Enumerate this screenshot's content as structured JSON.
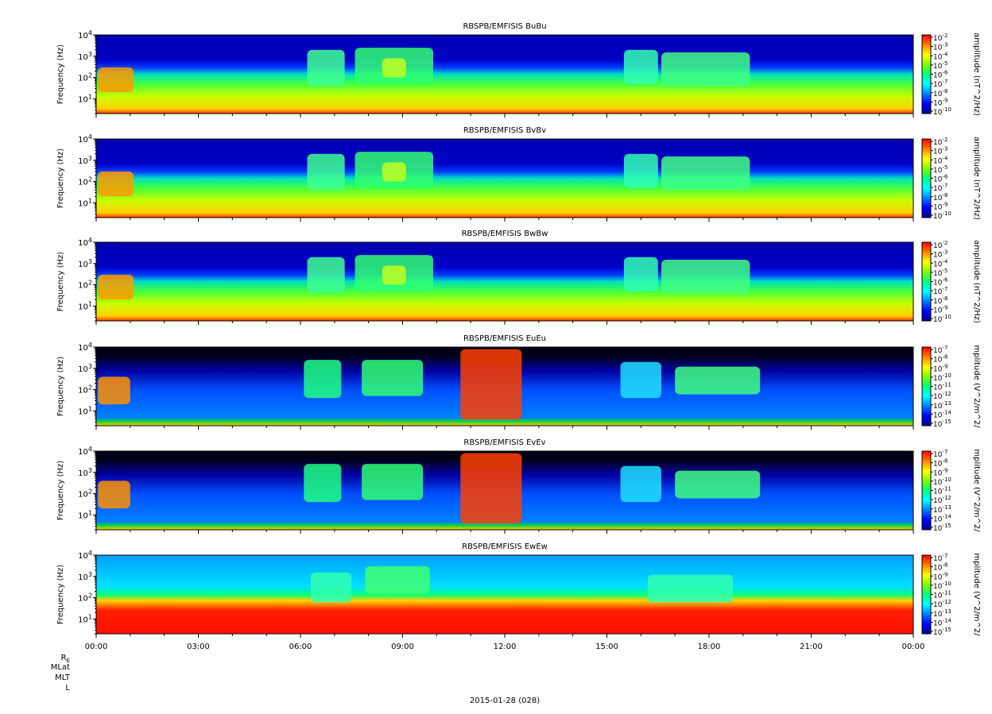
{
  "footer": {
    "date_label": "2015-01-28 (028)",
    "ephemeris_labels": [
      "RE",
      "MLat",
      "MLT",
      "L"
    ]
  },
  "chart_data": [
    {
      "type": "heatmap",
      "title": "RBSPB/EMFISIS  BuBu",
      "ylabel": "Frequency (Hz)",
      "ylim": [
        2,
        10000
      ],
      "yscale": "log",
      "ytick_values": [
        10,
        100,
        1000,
        10000
      ],
      "ytick_labels": [
        "10^1",
        "10^2",
        "10^3",
        "10^4"
      ],
      "colorbar_label": "amplitude (nT^2/Hz)",
      "colorbar_ticks": [
        "10^-2",
        "10^-3",
        "10^-4",
        "10^-5",
        "10^-6",
        "10^-7",
        "10^-8",
        "10^-9",
        "10^-10"
      ],
      "zlim": [
        "10^-10",
        "10^-2"
      ],
      "xlim": [
        "00:00",
        "24:00"
      ]
    },
    {
      "type": "heatmap",
      "title": "RBSPB/EMFISIS  BvBv",
      "ylabel": "Frequency (Hz)",
      "ylim": [
        2,
        10000
      ],
      "yscale": "log",
      "ytick_values": [
        10,
        100,
        1000,
        10000
      ],
      "ytick_labels": [
        "10^1",
        "10^2",
        "10^3",
        "10^4"
      ],
      "colorbar_label": "amplitude (nT^2/Hz)",
      "colorbar_ticks": [
        "10^-2",
        "10^-3",
        "10^-4",
        "10^-5",
        "10^-6",
        "10^-7",
        "10^-8",
        "10^-9",
        "10^-10"
      ],
      "zlim": [
        "10^-10",
        "10^-2"
      ],
      "xlim": [
        "00:00",
        "24:00"
      ]
    },
    {
      "type": "heatmap",
      "title": "RBSPB/EMFISIS  BwBw",
      "ylabel": "Frequency (Hz)",
      "ylim": [
        2,
        10000
      ],
      "yscale": "log",
      "ytick_values": [
        10,
        100,
        1000,
        10000
      ],
      "ytick_labels": [
        "10^1",
        "10^2",
        "10^3",
        "10^4"
      ],
      "colorbar_label": "amplitude (nT^2/Hz)",
      "colorbar_ticks": [
        "10^-2",
        "10^-3",
        "10^-4",
        "10^-5",
        "10^-6",
        "10^-7",
        "10^-8",
        "10^-9",
        "10^-10"
      ],
      "zlim": [
        "10^-10",
        "10^-2"
      ],
      "xlim": [
        "00:00",
        "24:00"
      ]
    },
    {
      "type": "heatmap",
      "title": "RBSPB/EMFISIS  EuEu",
      "ylabel": "Frequency (Hz)",
      "ylim": [
        2,
        10000
      ],
      "yscale": "log",
      "ytick_values": [
        10,
        100,
        1000,
        10000
      ],
      "ytick_labels": [
        "10^1",
        "10^2",
        "10^3",
        "10^4"
      ],
      "colorbar_label": "mplitude (V^2/m^2/",
      "colorbar_ticks": [
        "10^-7",
        "10^-8",
        "10^-9",
        "10^-10",
        "10^-11",
        "10^-12",
        "10^-13",
        "10^-14",
        "10^-15"
      ],
      "zlim": [
        "10^-15",
        "10^-7"
      ],
      "xlim": [
        "00:00",
        "24:00"
      ]
    },
    {
      "type": "heatmap",
      "title": "RBSPB/EMFISIS  EvEv",
      "ylabel": "Frequency (Hz)",
      "ylim": [
        2,
        10000
      ],
      "yscale": "log",
      "ytick_values": [
        10,
        100,
        1000,
        10000
      ],
      "ytick_labels": [
        "10^1",
        "10^2",
        "10^3",
        "10^4"
      ],
      "colorbar_label": "mplitude (V^2/m^2/",
      "colorbar_ticks": [
        "10^-7",
        "10^-8",
        "10^-9",
        "10^-10",
        "10^-11",
        "10^-12",
        "10^-13",
        "10^-14",
        "10^-15"
      ],
      "zlim": [
        "10^-15",
        "10^-7"
      ],
      "xlim": [
        "00:00",
        "24:00"
      ]
    },
    {
      "type": "heatmap",
      "title": "RBSPB/EMFISIS  EwEw",
      "ylabel": "Frequency (Hz)",
      "ylim": [
        2,
        10000
      ],
      "yscale": "log",
      "ytick_values": [
        10,
        100,
        1000,
        10000
      ],
      "ytick_labels": [
        "10^1",
        "10^2",
        "10^3",
        "10^4"
      ],
      "colorbar_label": "mplitude (V^2/m^2/",
      "colorbar_ticks": [
        "10^-7",
        "10^-8",
        "10^-9",
        "10^-10",
        "10^-11",
        "10^-12",
        "10^-13",
        "10^-14",
        "10^-15"
      ],
      "zlim": [
        "10^-15",
        "10^-7"
      ],
      "xlim": [
        "00:00",
        "24:00"
      ],
      "xtick_labels": [
        "00:00",
        "03:00",
        "06:00",
        "09:00",
        "12:00",
        "15:00",
        "18:00",
        "21:00",
        "00:00"
      ]
    }
  ],
  "colormap": [
    "#00008b",
    "#0000ff",
    "#0080ff",
    "#00ffff",
    "#00ff80",
    "#80ff00",
    "#ffff00",
    "#ff8000",
    "#ff0000"
  ]
}
